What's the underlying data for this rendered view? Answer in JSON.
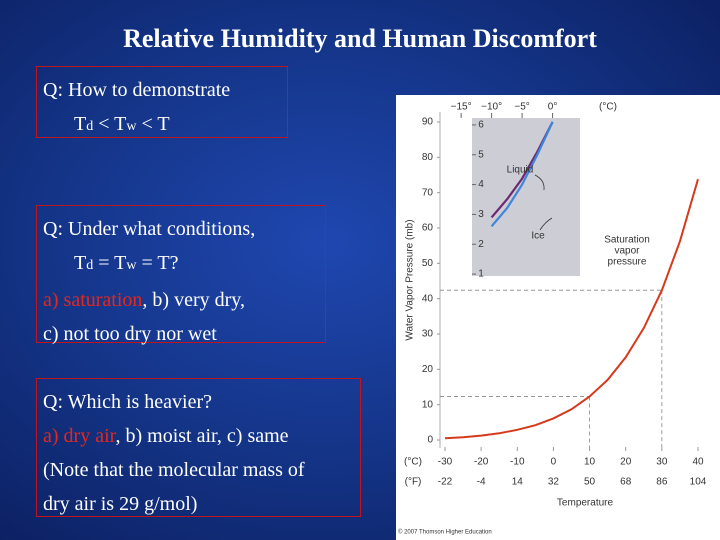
{
  "title": "Relative Humidity and Human Discomfort",
  "questions": [
    {
      "lines": [
        [
          {
            "text": "Q: How to demonstrate"
          }
        ],
        [
          {
            "text": "T"
          },
          {
            "text": "d",
            "style": "sub"
          },
          {
            "text": " < T"
          },
          {
            "text": "w",
            "style": "sub"
          },
          {
            "text": " < T"
          }
        ]
      ]
    },
    {
      "lines": [
        [
          {
            "text": "Q: Under what conditions,"
          }
        ],
        [
          {
            "text": "T"
          },
          {
            "text": "d",
            "style": "sub"
          },
          {
            "text": " = T"
          },
          {
            "text": "w",
            "style": "sub"
          },
          {
            "text": " = T?"
          }
        ],
        [
          {
            "text": "a) saturation",
            "style": "red"
          },
          {
            "text": ", b) very dry,"
          }
        ],
        [
          {
            "text": "c) not too dry nor wet"
          }
        ]
      ]
    },
    {
      "lines": [
        [
          {
            "text": "Q: Which is heavier?"
          }
        ],
        [
          {
            "text": "a) dry air",
            "style": "red"
          },
          {
            "text": ", b) moist air, c) same"
          }
        ],
        [
          {
            "text": "(Note that the molecular mass of"
          }
        ],
        [
          {
            "text": "dry air is 29 g/mol)"
          }
        ]
      ]
    }
  ],
  "figure": {
    "y_label": "Water Vapor Pressure (mb)",
    "x_label": "Temperature",
    "c_unit": "(°C)",
    "f_unit": "(°F)",
    "ylim": [
      0,
      90
    ],
    "yticks": [
      0,
      10,
      20,
      30,
      40,
      50,
      60,
      70,
      80,
      90
    ],
    "xlim": [
      -30,
      40
    ],
    "xticks": [
      -30,
      -20,
      -10,
      0,
      10,
      20,
      30,
      40
    ],
    "xticks_f": [
      -22,
      -4,
      14,
      32,
      50,
      68,
      86,
      104
    ],
    "curve": {
      "label_lines": [
        "Saturation",
        "vapor",
        "pressure"
      ],
      "color": "#d63a1c",
      "x": [
        -30,
        -25,
        -20,
        -15,
        -10,
        -5,
        0,
        5,
        10,
        15,
        20,
        25,
        30,
        35,
        40
      ],
      "values": [
        0.5,
        0.8,
        1.25,
        1.9,
        2.9,
        4.2,
        6.1,
        8.7,
        12.3,
        17.0,
        23.4,
        31.7,
        42.4,
        56.2,
        73.8
      ]
    },
    "guides": [
      {
        "x": 10,
        "y": 12.3
      },
      {
        "x": 30,
        "y": 42.4
      }
    ],
    "inset": {
      "xlim": [
        -16.5,
        4.5
      ],
      "ylim": [
        0.5,
        6.5
      ],
      "xticks": [
        {
          "value": -15,
          "label": "−15°"
        },
        {
          "value": -10,
          "label": "−10°"
        },
        {
          "value": -5,
          "label": "−5°"
        },
        {
          "value": 0,
          "label": "0°"
        }
      ],
      "unit": "(°C)",
      "yticks": [
        1,
        2,
        3,
        4,
        5,
        6
      ],
      "liquid": {
        "label": "Liquid",
        "color": "#6e2a70",
        "x": [
          -10,
          -7.5,
          -5,
          -2.5,
          0
        ],
        "values": [
          2.9,
          3.5,
          4.2,
          5.1,
          6.1
        ]
      },
      "ice": {
        "label": "Ice",
        "color": "#3d86db",
        "x": [
          -10,
          -7.5,
          -5,
          -2.5,
          0
        ],
        "values": [
          2.6,
          3.2,
          4.0,
          5.0,
          6.1
        ]
      }
    },
    "credit": "© 2007 Thomson Higher Education"
  }
}
